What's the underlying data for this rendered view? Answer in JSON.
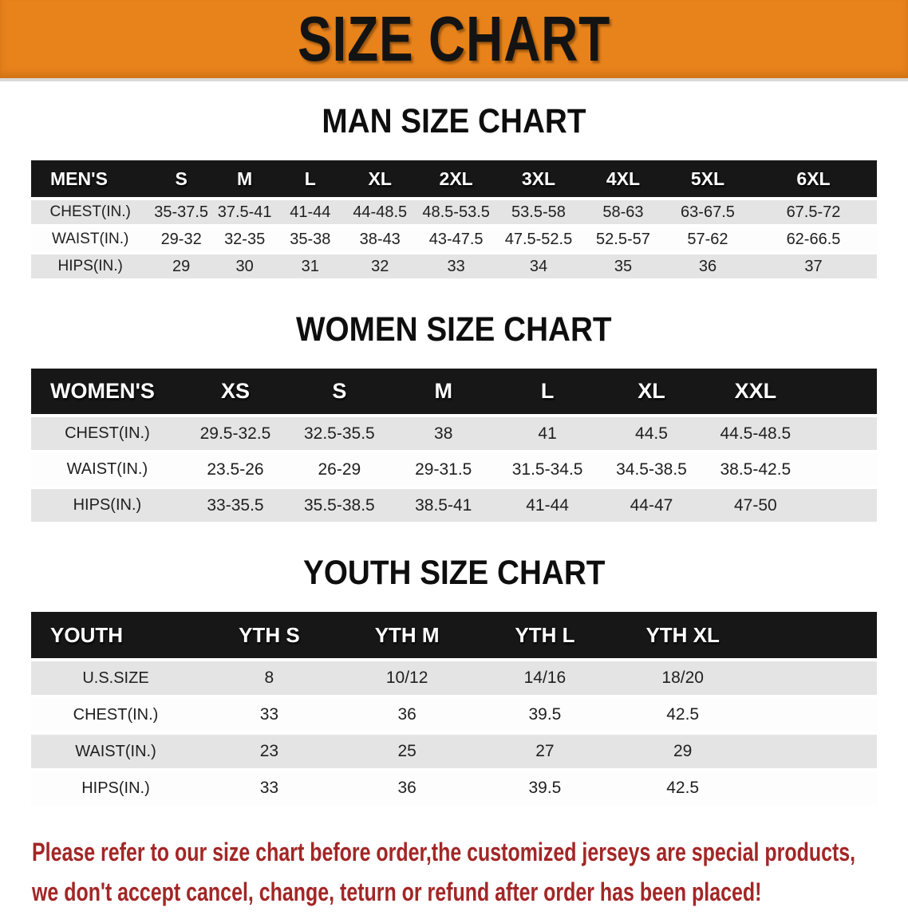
{
  "banner": {
    "title": "SIZE CHART",
    "bg_color": "#E8821B",
    "text_color": "#131313"
  },
  "sections": [
    {
      "id": "men",
      "heading": "MAN SIZE CHART",
      "corner_label": "MEN'S",
      "columns": [
        "S",
        "M",
        "L",
        "XL",
        "2XL",
        "3XL",
        "4XL",
        "5XL",
        "6XL"
      ],
      "rows": [
        {
          "label": "CHEST(IN.)",
          "values": [
            "35-37.5",
            "37.5-41",
            "41-44",
            "44-48.5",
            "48.5-53.5",
            "53.5-58",
            "58-63",
            "63-67.5",
            "67.5-72"
          ]
        },
        {
          "label": "WAIST(IN.)",
          "values": [
            "29-32",
            "32-35",
            "35-38",
            "38-43",
            "43-47.5",
            "47.5-52.5",
            "52.5-57",
            "57-62",
            "62-66.5"
          ]
        },
        {
          "label": "HIPS(IN.)",
          "values": [
            "29",
            "30",
            "31",
            "32",
            "33",
            "34",
            "35",
            "36",
            "37"
          ]
        }
      ]
    },
    {
      "id": "women",
      "heading": "WOMEN SIZE CHART",
      "corner_label": "WOMEN'S",
      "columns": [
        "XS",
        "S",
        "M",
        "L",
        "XL",
        "XXL"
      ],
      "rows": [
        {
          "label": "CHEST(IN.)",
          "values": [
            "29.5-32.5",
            "32.5-35.5",
            "38",
            "41",
            "44.5",
            "44.5-48.5"
          ]
        },
        {
          "label": "WAIST(IN.)",
          "values": [
            "23.5-26",
            "26-29",
            "29-31.5",
            "31.5-34.5",
            "34.5-38.5",
            "38.5-42.5"
          ]
        },
        {
          "label": "HIPS(IN.)",
          "values": [
            "33-35.5",
            "35.5-38.5",
            "38.5-41",
            "41-44",
            "44-47",
            "47-50"
          ]
        }
      ]
    },
    {
      "id": "youth",
      "heading": "YOUTH SIZE CHART",
      "corner_label": "YOUTH",
      "columns": [
        "YTH S",
        "YTH M",
        "YTH L",
        "YTH XL"
      ],
      "rows": [
        {
          "label": "U.S.SIZE",
          "values": [
            "8",
            "10/12",
            "14/16",
            "18/20"
          ]
        },
        {
          "label": "CHEST(IN.)",
          "values": [
            "33",
            "36",
            "39.5",
            "42.5"
          ]
        },
        {
          "label": "WAIST(IN.)",
          "values": [
            "23",
            "25",
            "27",
            "29"
          ]
        },
        {
          "label": "HIPS(IN.)",
          "values": [
            "33",
            "36",
            "39.5",
            "42.5"
          ]
        }
      ]
    }
  ],
  "disclaimer": {
    "lines": [
      "Please refer to our size chart before order,the customized jerseys are special products,",
      "we don't accept cancel, change, teturn or refund after order has been placed!"
    ],
    "color": "#A32626"
  }
}
